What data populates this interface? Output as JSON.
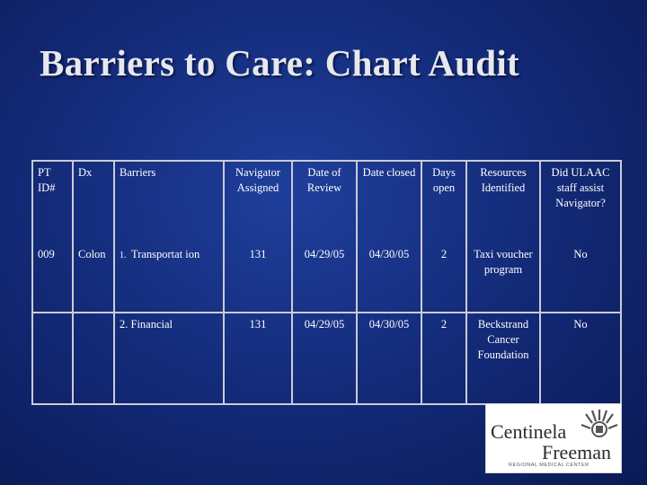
{
  "slide": {
    "title": "Barriers to Care: Chart Audit"
  },
  "table": {
    "headers": {
      "pt_id": "PT ID#",
      "dx": "Dx",
      "barriers": "Barriers",
      "navigator_assigned": "Navigator Assigned",
      "date_of_review": "Date of Review",
      "date_closed": "Date closed",
      "days_open": "Days open",
      "resources_identified": "Resources Identified",
      "ulaac_assist": "Did ULAAC staff assist Navigator?"
    },
    "rows": [
      {
        "pt_id": "009",
        "dx": "Colon",
        "barrier_num": "1.",
        "barrier": "Transportat ion",
        "navigator_assigned": "131",
        "date_of_review": "04/29/05",
        "date_closed": "04/30/05",
        "days_open": "2",
        "resources_identified": "Taxi voucher program",
        "ulaac_assist": "No"
      },
      {
        "pt_id": "",
        "dx": "",
        "barrier_num": "",
        "barrier": "2. Financial",
        "navigator_assigned": "131",
        "date_of_review": "04/29/05",
        "date_closed": "04/30/05",
        "days_open": "2",
        "resources_identified": "Beckstrand Cancer Foundation",
        "ulaac_assist": "No"
      }
    ]
  },
  "logo": {
    "line1": "Centinela",
    "line2": "Freeman",
    "line3": "REGIONAL MEDICAL CENTER"
  }
}
